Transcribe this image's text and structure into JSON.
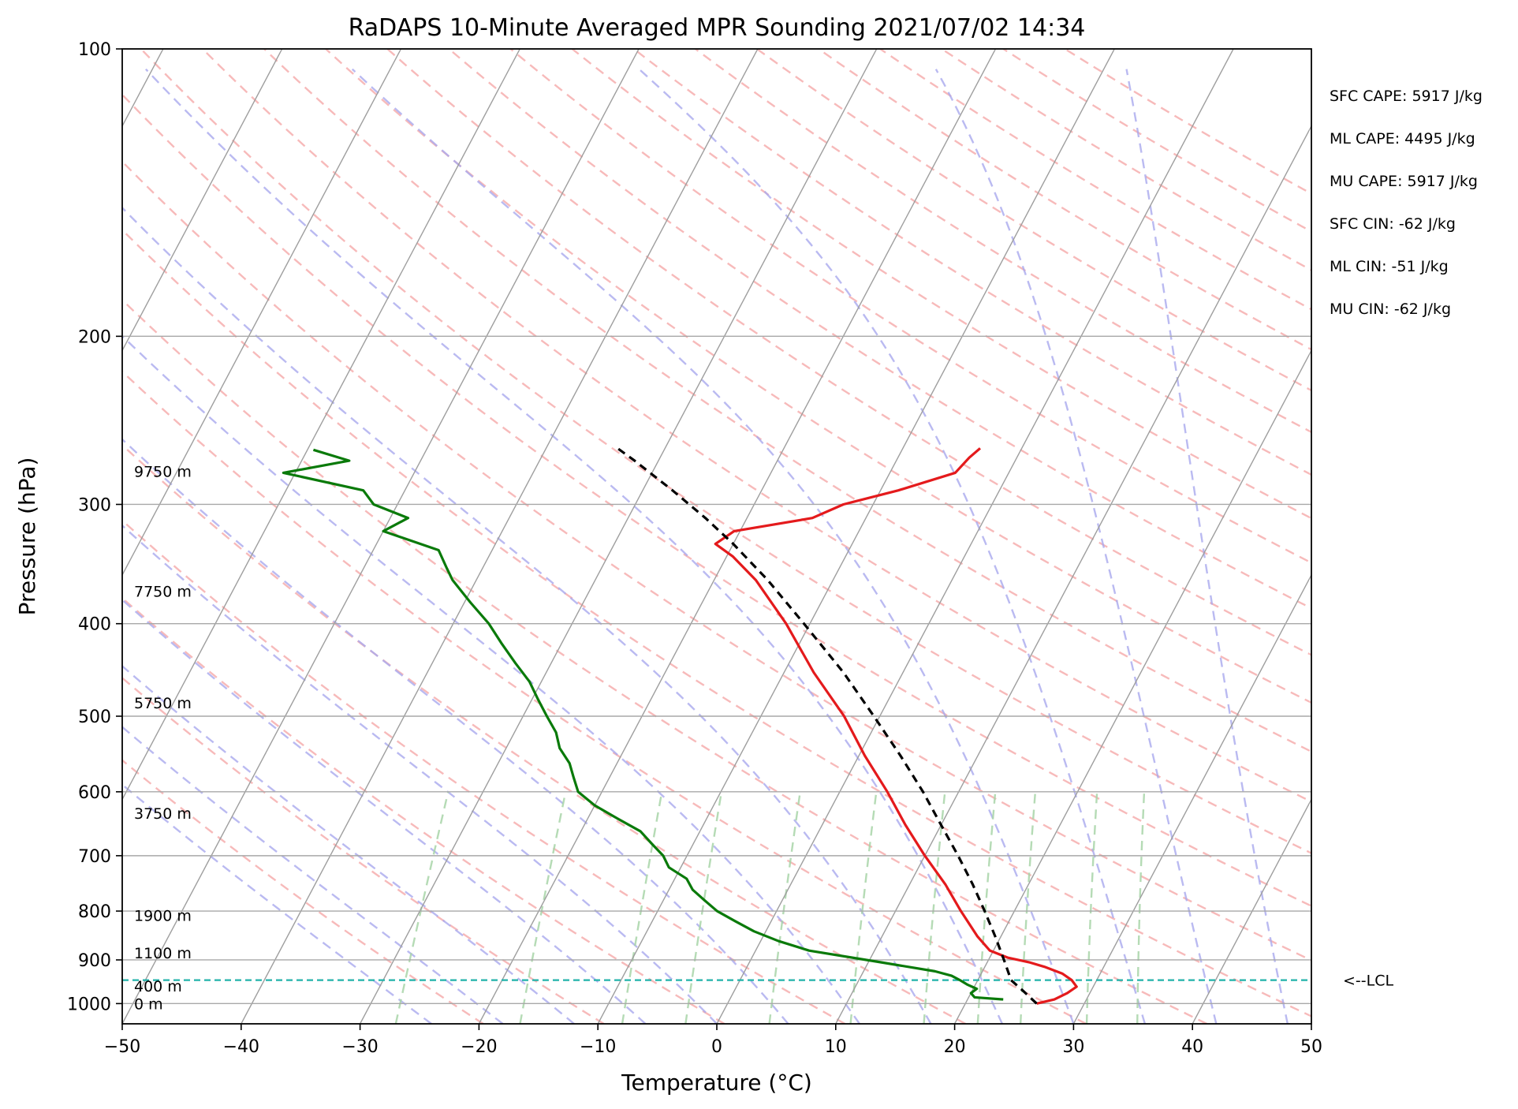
{
  "chart_data": {
    "type": "line",
    "title": "RaDAPS 10-Minute Averaged MPR Sounding 2021/07/02 14:34",
    "xlabel": "Temperature (°C)",
    "ylabel": "Pressure (hPa)",
    "xlim": [
      -50,
      50
    ],
    "ylim": [
      1050,
      100
    ],
    "y_scale": "log",
    "skew": true,
    "x_ticks": [
      -50,
      -40,
      -30,
      -20,
      -10,
      0,
      10,
      20,
      30,
      40,
      50
    ],
    "y_ticks": [
      100,
      200,
      300,
      400,
      500,
      600,
      700,
      800,
      900,
      1000
    ],
    "x_tick_labels": [
      "−50",
      "−40",
      "−30",
      "−20",
      "−10",
      "0",
      "10",
      "20",
      "30",
      "40",
      "50"
    ],
    "y_tick_labels": [
      "100",
      "200",
      "300",
      "400",
      "500",
      "600",
      "700",
      "800",
      "900",
      "1000"
    ],
    "grid": true,
    "series": [
      {
        "role": "temperature",
        "color": "#e41a1c",
        "points": [
          [
            1000,
            26.0
          ],
          [
            990,
            27.3
          ],
          [
            975,
            28.1
          ],
          [
            960,
            28.6
          ],
          [
            945,
            27.9
          ],
          [
            930,
            26.8
          ],
          [
            915,
            25.0
          ],
          [
            905,
            23.5
          ],
          [
            895,
            21.5
          ],
          [
            880,
            19.7
          ],
          [
            850,
            18.0
          ],
          [
            800,
            15.5
          ],
          [
            750,
            13.0
          ],
          [
            700,
            10.0
          ],
          [
            650,
            7.0
          ],
          [
            600,
            4.0
          ],
          [
            550,
            0.5
          ],
          [
            500,
            -3.0
          ],
          [
            450,
            -7.5
          ],
          [
            400,
            -12.0
          ],
          [
            360,
            -16.5
          ],
          [
            340,
            -19.5
          ],
          [
            330,
            -21.5
          ],
          [
            320,
            -20.5
          ],
          [
            310,
            -14.5
          ],
          [
            300,
            -12.5
          ],
          [
            290,
            -8.5
          ],
          [
            278,
            -4.5
          ],
          [
            268,
            -4.0
          ],
          [
            262,
            -3.5
          ]
        ]
      },
      {
        "role": "dewpoint",
        "color": "#0a7a0a",
        "points": [
          [
            990,
            23.0
          ],
          [
            985,
            20.5
          ],
          [
            975,
            20.0
          ],
          [
            965,
            20.3
          ],
          [
            955,
            19.3
          ],
          [
            945,
            18.5
          ],
          [
            935,
            17.6
          ],
          [
            925,
            16.0
          ],
          [
            905,
            11.0
          ],
          [
            880,
            4.5
          ],
          [
            860,
            1.5
          ],
          [
            840,
            -1.0
          ],
          [
            820,
            -3.0
          ],
          [
            800,
            -5.0
          ],
          [
            780,
            -6.5
          ],
          [
            760,
            -8.0
          ],
          [
            740,
            -9.0
          ],
          [
            720,
            -11.0
          ],
          [
            700,
            -12.0
          ],
          [
            680,
            -13.5
          ],
          [
            660,
            -15.0
          ],
          [
            640,
            -17.5
          ],
          [
            620,
            -20.0
          ],
          [
            600,
            -22.0
          ],
          [
            580,
            -23.0
          ],
          [
            560,
            -24.0
          ],
          [
            540,
            -25.5
          ],
          [
            520,
            -26.5
          ],
          [
            500,
            -28.0
          ],
          [
            480,
            -29.5
          ],
          [
            460,
            -31.0
          ],
          [
            440,
            -33.0
          ],
          [
            420,
            -35.0
          ],
          [
            400,
            -37.0
          ],
          [
            380,
            -39.5
          ],
          [
            360,
            -42.0
          ],
          [
            350,
            -43.0
          ],
          [
            335,
            -44.5
          ],
          [
            320,
            -50.0
          ],
          [
            310,
            -48.5
          ],
          [
            300,
            -52.0
          ],
          [
            290,
            -53.5
          ],
          [
            278,
            -61.0
          ],
          [
            270,
            -56.0
          ],
          [
            263,
            -59.5
          ]
        ]
      },
      {
        "role": "parcel",
        "color": "#000000",
        "points": [
          [
            1000,
            26.0
          ],
          [
            970,
            24.3
          ],
          [
            945,
            22.8
          ],
          [
            900,
            21.3
          ],
          [
            850,
            19.5
          ],
          [
            800,
            17.5
          ],
          [
            750,
            15.3
          ],
          [
            700,
            12.8
          ],
          [
            650,
            10.0
          ],
          [
            600,
            7.0
          ],
          [
            550,
            3.5
          ],
          [
            500,
            -0.5
          ],
          [
            450,
            -5.0
          ],
          [
            400,
            -10.5
          ],
          [
            360,
            -15.5
          ],
          [
            330,
            -20.0
          ],
          [
            310,
            -23.5
          ],
          [
            290,
            -27.5
          ],
          [
            270,
            -32.0
          ],
          [
            262,
            -34.0
          ]
        ]
      }
    ],
    "lcl": {
      "pressure": 945,
      "label": "<--LCL",
      "color": "#20b2aa"
    },
    "height_labels": [
      {
        "label": "0 m",
        "pressure": 1000
      },
      {
        "label": "400 m",
        "pressure": 958
      },
      {
        "label": "1100 m",
        "pressure": 885
      },
      {
        "label": "1900 m",
        "pressure": 808
      },
      {
        "label": "3750 m",
        "pressure": 632
      },
      {
        "label": "5750 m",
        "pressure": 484
      },
      {
        "label": "7750 m",
        "pressure": 370
      },
      {
        "label": "9750 m",
        "pressure": 277
      }
    ],
    "indices": [
      "SFC CAPE: 5917 J/kg",
      "ML CAPE: 4495 J/kg",
      "MU CAPE: 5917 J/kg",
      "SFC CIN: -62 J/kg",
      "ML CIN: -51 J/kg",
      "MU CIN: -62 J/kg"
    ],
    "background_colors": {
      "isotherm": "#9e9e9e",
      "dry_adiabat": "#f4a3a3",
      "moist_adiabat": "#a9a9ee",
      "mixing_ratio": "#a8d5a8",
      "isobar": "#a8a8a8"
    }
  }
}
